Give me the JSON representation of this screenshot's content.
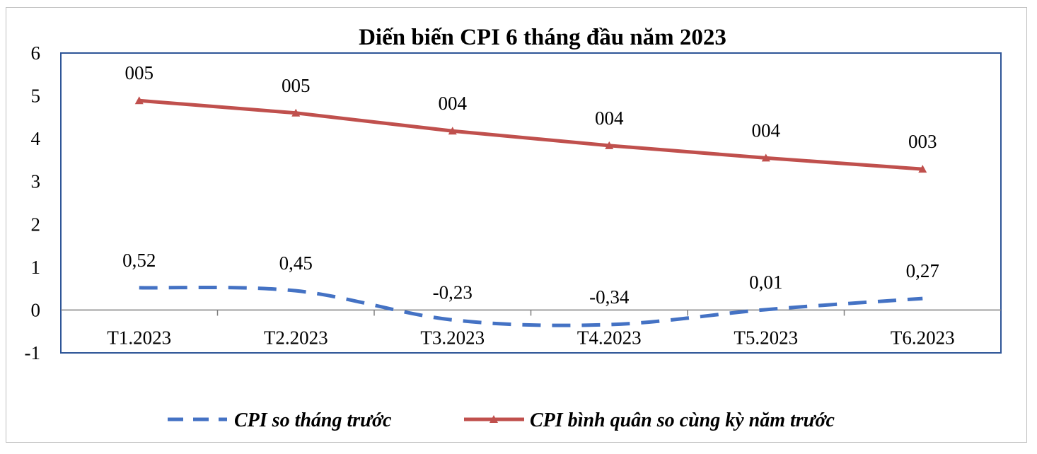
{
  "chart_data": {
    "type": "line",
    "title": "Diến biến CPI 6 tháng đầu năm 2023",
    "categories": [
      "T1.2023",
      "T2.2023",
      "T3.2023",
      "T4.2023",
      "T5.2023",
      "T6.2023"
    ],
    "ylim": [
      -1,
      6
    ],
    "yticks": [
      "-1",
      "0",
      "1",
      "2",
      "3",
      "4",
      "5",
      "6"
    ],
    "xlabel": "",
    "ylabel": "",
    "legend_position": "bottom",
    "series": [
      {
        "name": "CPI so tháng trước",
        "values": [
          0.52,
          0.45,
          -0.23,
          -0.34,
          0.01,
          0.27
        ],
        "labels": [
          "0,52",
          "0,45",
          "-0,23",
          "-0,34",
          "0,01",
          "0,27"
        ],
        "color": "#4472c4",
        "style": "dashed"
      },
      {
        "name": "CPI bình quân so cùng kỳ năm trước",
        "values": [
          4.89,
          4.6,
          4.18,
          3.84,
          3.55,
          3.29
        ],
        "labels": [
          "005",
          "005",
          "004",
          "004",
          "004",
          "003"
        ],
        "color": "#c0504d",
        "style": "solid-triangle"
      }
    ]
  }
}
